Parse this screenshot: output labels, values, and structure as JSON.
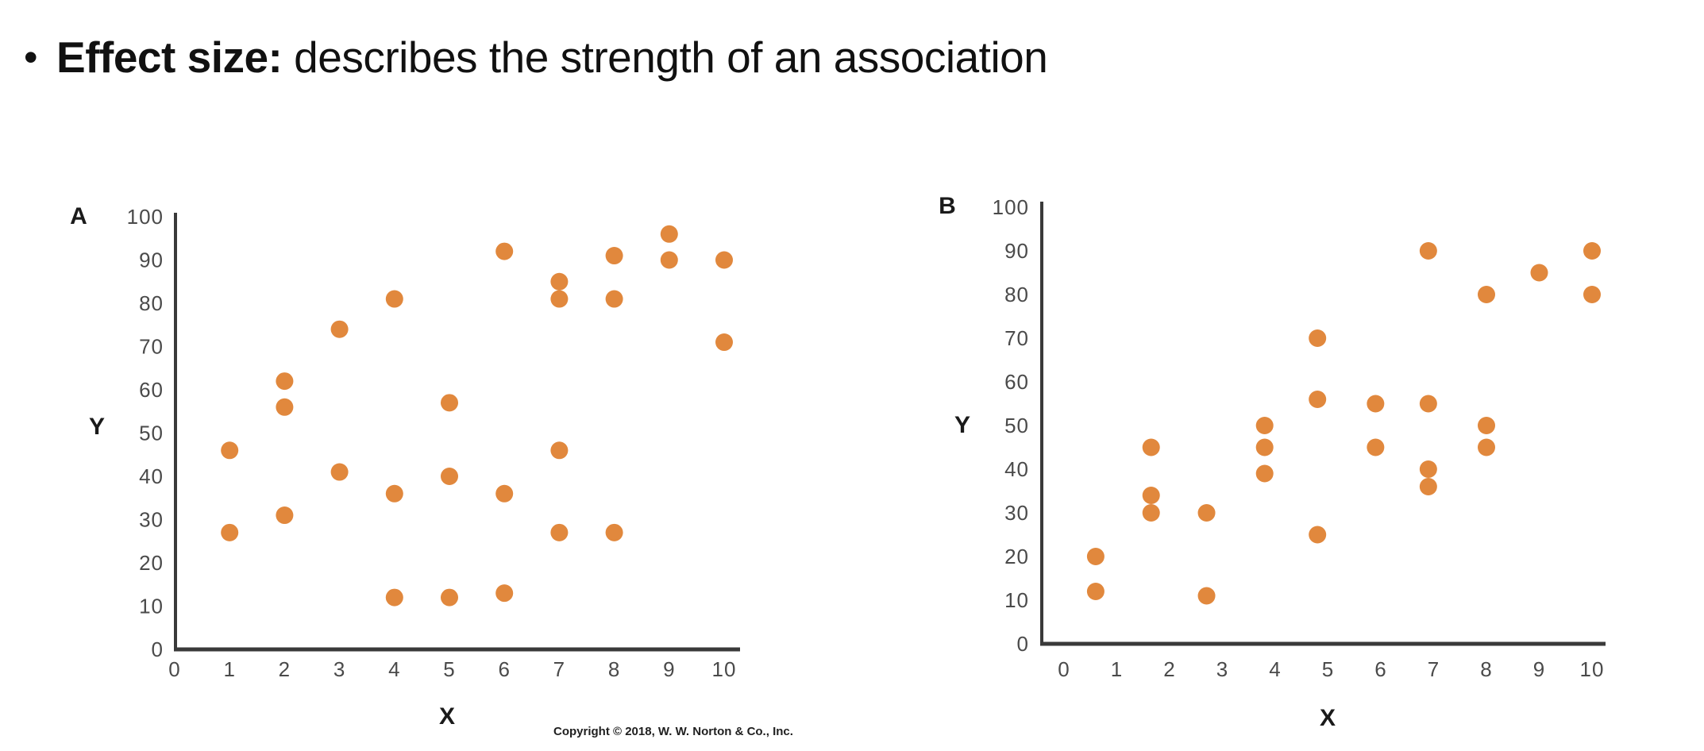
{
  "title": {
    "bullet": "•",
    "bold": "Effect size:",
    "rest": " describes the strength of an association"
  },
  "copyright": "Copyright © 2018, W. W. Norton & Co., Inc.",
  "colors": {
    "dot": "#E1883D",
    "axis": "#3A3A3A",
    "tick_text": "#4A4A4A",
    "title_text": "#111111"
  },
  "chart_data": [
    {
      "type": "scatter",
      "panel_label": "A",
      "xlabel": "X",
      "ylabel": "Y",
      "xlim": [
        0,
        10
      ],
      "ylim": [
        0,
        100
      ],
      "xticks": [
        0,
        1,
        2,
        3,
        4,
        5,
        6,
        7,
        8,
        9,
        10
      ],
      "yticks": [
        0,
        10,
        20,
        30,
        40,
        50,
        60,
        70,
        80,
        90,
        100
      ],
      "grid": false,
      "legend": null,
      "points": [
        [
          1,
          46
        ],
        [
          1,
          27
        ],
        [
          2,
          62
        ],
        [
          2,
          56
        ],
        [
          2,
          31
        ],
        [
          3,
          74
        ],
        [
          3,
          41
        ],
        [
          4,
          81
        ],
        [
          4,
          36
        ],
        [
          4,
          12
        ],
        [
          5,
          57
        ],
        [
          5,
          40
        ],
        [
          5,
          12
        ],
        [
          6,
          92
        ],
        [
          6,
          36
        ],
        [
          6,
          13
        ],
        [
          7,
          85
        ],
        [
          7,
          81
        ],
        [
          7,
          46
        ],
        [
          7,
          27
        ],
        [
          8,
          91
        ],
        [
          8,
          81
        ],
        [
          8,
          27
        ],
        [
          9,
          96
        ],
        [
          9,
          90
        ],
        [
          10,
          90
        ],
        [
          10,
          71
        ]
      ]
    },
    {
      "type": "scatter",
      "panel_label": "B",
      "xlabel": "X",
      "ylabel": "Y",
      "xlim": [
        0,
        10
      ],
      "ylim": [
        0,
        100
      ],
      "xticks": [
        0,
        1,
        2,
        3,
        4,
        5,
        6,
        7,
        8,
        9,
        10
      ],
      "yticks": [
        0,
        10,
        20,
        30,
        40,
        50,
        60,
        70,
        80,
        90,
        100
      ],
      "grid": false,
      "legend": null,
      "points": [
        [
          0.6,
          20
        ],
        [
          0.6,
          12
        ],
        [
          1.65,
          45
        ],
        [
          1.65,
          34
        ],
        [
          1.65,
          30
        ],
        [
          2.7,
          30
        ],
        [
          2.7,
          11
        ],
        [
          3.8,
          50
        ],
        [
          3.8,
          45
        ],
        [
          3.8,
          39
        ],
        [
          4.8,
          70
        ],
        [
          4.8,
          56
        ],
        [
          4.8,
          25
        ],
        [
          5.9,
          55
        ],
        [
          5.9,
          45
        ],
        [
          6.9,
          90
        ],
        [
          6.9,
          55
        ],
        [
          6.9,
          40
        ],
        [
          6.9,
          36
        ],
        [
          8,
          80
        ],
        [
          8,
          50
        ],
        [
          8,
          45
        ],
        [
          9,
          85
        ],
        [
          10,
          90
        ],
        [
          10,
          80
        ]
      ]
    }
  ]
}
